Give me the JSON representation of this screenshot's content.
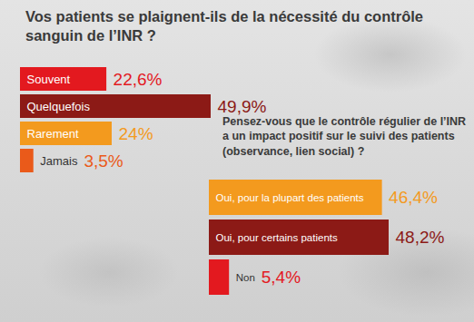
{
  "chart_data": [
    {
      "type": "bar",
      "title": "Vos patients se plaignent-ils de la nécessité du contrôle sanguin de l’INR ?",
      "orientation": "horizontal",
      "categories": [
        "Souvent",
        "Quelquefois",
        "Rarement",
        "Jamais"
      ],
      "values": [
        22.6,
        49.9,
        24,
        3.5
      ],
      "value_labels": [
        "22,6%",
        "49,9%",
        "24%",
        "3,5%"
      ],
      "colors": [
        "#e3191f",
        "#8c1a16",
        "#f39a1e",
        "#ea5a1a"
      ],
      "data_labels": true,
      "tick_labels": false
    },
    {
      "type": "bar",
      "title": "Pensez-vous que le contrôle régulier de l’INR a un impact positif sur le suivi des patients (observance, lien social) ?",
      "orientation": "horizontal",
      "categories": [
        "Oui, pour la plupart des patients",
        "Oui, pour certains patients",
        "Non"
      ],
      "values": [
        46.4,
        48.2,
        5.4
      ],
      "value_labels": [
        "46,4%",
        "48,2%",
        "5,4%"
      ],
      "colors": [
        "#f39a1e",
        "#8c1a16",
        "#e3191f"
      ],
      "data_labels": true,
      "tick_labels": false
    }
  ]
}
